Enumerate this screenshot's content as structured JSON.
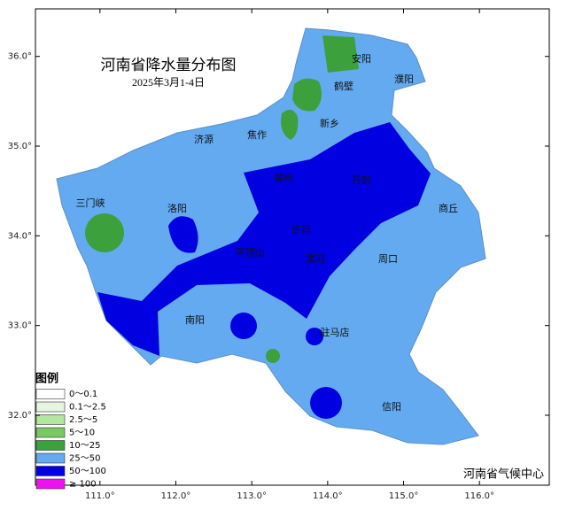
{
  "map": {
    "title": "河南省降水量分布图",
    "subtitle": "2025年3月1-4日",
    "xlim": [
      110.15,
      116.92
    ],
    "ylim": [
      31.22,
      36.53
    ],
    "xticks": [
      {
        "value": 111,
        "label": "111.0°"
      },
      {
        "value": 112,
        "label": "112.0°"
      },
      {
        "value": 113,
        "label": "113.0°"
      },
      {
        "value": 114,
        "label": "114.0°"
      },
      {
        "value": 115,
        "label": "115.0°"
      },
      {
        "value": 116,
        "label": "116.0°"
      }
    ],
    "yticks": [
      {
        "value": 32,
        "label": "32.0°"
      },
      {
        "value": 33,
        "label": "33.0°"
      },
      {
        "value": 34,
        "label": "34.0°"
      },
      {
        "value": 35,
        "label": "35.0°"
      },
      {
        "value": 36,
        "label": "36.0°"
      }
    ],
    "cities": [
      "安阳",
      "鹤壁",
      "濮阳",
      "新乡",
      "济源",
      "焦作",
      "郑州",
      "开封",
      "三门峡",
      "洛阳",
      "商丘",
      "许昌",
      "平顶山",
      "漯河",
      "周口",
      "南阳",
      "驻马店",
      "信阳"
    ],
    "legend": {
      "title": "图例",
      "entries": [
        {
          "label": "0～0.1",
          "color": "#ffffff"
        },
        {
          "label": "0.1～2.5",
          "color": "#e6f5e0"
        },
        {
          "label": "2.5～5",
          "color": "#b4e6a0"
        },
        {
          "label": "5～10",
          "color": "#78c864"
        },
        {
          "label": "10～25",
          "color": "#3ca03c"
        },
        {
          "label": "25～50",
          "color": "#64aaf0"
        },
        {
          "label": "50～100",
          "color": "#0000e0"
        },
        {
          "label": "≥ 100",
          "color": "#f010f0"
        }
      ]
    },
    "credit": "河南省气候中心"
  }
}
